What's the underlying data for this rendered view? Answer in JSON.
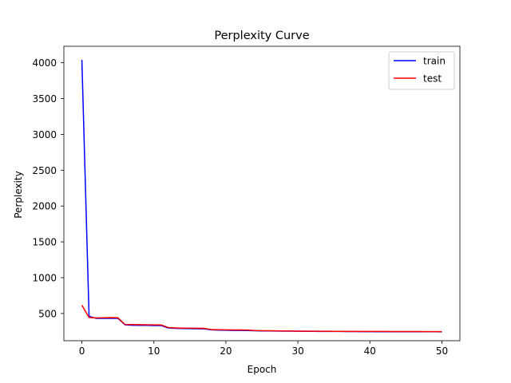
{
  "chart_data": {
    "type": "line",
    "title": "Perplexity Curve",
    "xlabel": "Epoch",
    "ylabel": "Perplexity",
    "xlim": [
      -2.5,
      52.5
    ],
    "ylim": [
      120,
      4230
    ],
    "xticks": [
      0,
      10,
      20,
      30,
      40,
      50
    ],
    "yticks": [
      500,
      1000,
      1500,
      2000,
      2500,
      3000,
      3500,
      4000
    ],
    "grid": false,
    "legend_position": "top-right",
    "x": [
      0,
      1,
      2,
      3,
      4,
      5,
      6,
      7,
      8,
      9,
      10,
      11,
      12,
      13,
      14,
      15,
      16,
      17,
      18,
      19,
      20,
      21,
      22,
      23,
      24,
      25,
      26,
      27,
      28,
      29,
      30,
      31,
      32,
      33,
      34,
      35,
      36,
      37,
      38,
      39,
      40,
      41,
      42,
      43,
      44,
      45,
      46,
      47,
      48,
      49,
      50
    ],
    "series": [
      {
        "name": "train",
        "color": "#0000ff",
        "values": [
          4040,
          460,
          432,
          432,
          432,
          432,
          342,
          336,
          335,
          334,
          332,
          331,
          298,
          292,
          290,
          289,
          287,
          286,
          272,
          268,
          266,
          264,
          263,
          262,
          259,
          256,
          256,
          255,
          254,
          254,
          252,
          251,
          251,
          250,
          250,
          249,
          249,
          248,
          248,
          247,
          247,
          246,
          246,
          246,
          246,
          246,
          246,
          245,
          245,
          245,
          244
        ]
      },
      {
        "name": "test",
        "color": "#ff0000",
        "values": [
          615,
          444,
          438,
          440,
          443,
          440,
          347,
          345,
          344,
          343,
          342,
          340,
          304,
          298,
          296,
          295,
          294,
          292,
          276,
          273,
          272,
          271,
          270,
          269,
          262,
          259,
          259,
          258,
          257,
          256,
          254,
          253,
          253,
          252,
          252,
          251,
          251,
          250,
          250,
          249,
          249,
          249,
          249,
          248,
          248,
          248,
          248,
          248,
          247,
          247,
          247
        ]
      }
    ]
  }
}
